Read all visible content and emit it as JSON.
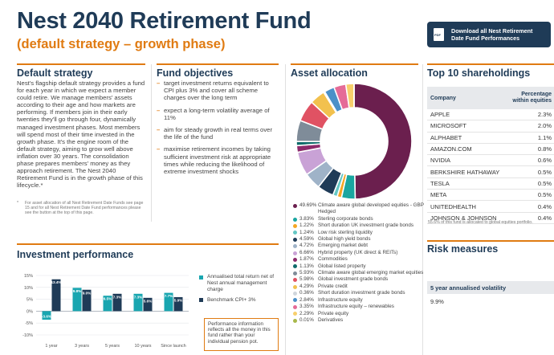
{
  "header": {
    "title": "Nest 2040 Retirement Fund",
    "subtitle": "(default strategy – growth phase)",
    "download_label": "Download all Nest Retirement Date Fund Performances",
    "download_icon_text": "PDF",
    "download_icon": "pdf-document-icon"
  },
  "colors": {
    "navy": "#1f3b57",
    "orange": "#e07b12",
    "teal": "#19a6b0"
  },
  "default_strategy": {
    "heading": "Default strategy",
    "body": "Nest's flagship default strategy provides a fund for each year in which we expect a member could retire. We manage members' assets according to their age and how markets are performing. If members join in their early twenties they'll go through four, dynamically managed investment phases. Most members will spend most of their time invested in the growth phase. It's the engine room of the default strategy, aiming to grow well above inflation over 30 years. The consolidation phase prepares members' money as they approach retirement. The Nest 2040 Retirement Fund is in the growth phase of this lifecycle.*",
    "footnote_mark": "*",
    "footnote": "For asset allocation of all Nest Retirement Date Funds see page 15 and for all Nest Retirement Date Fund performances please see the button at the top of this page."
  },
  "fund_objectives": {
    "heading": "Fund objectives",
    "items": [
      "target investment returns equivalent to CPI plus 3% and cover all scheme charges over the long term",
      "expect a long-term volatility average of 11%",
      "aim for steady growth in real terms over the life of the fund",
      "maximise retirement incomes by taking sufficient investment risk at appropriate times while reducing the likelihood of extreme investment shocks"
    ]
  },
  "asset_allocation": {
    "heading": "Asset allocation",
    "items": [
      {
        "pct": "49.69%",
        "label": "Climate aware global developed equities - GBP Hedged",
        "value": 49.69,
        "color": "#6b1f4e"
      },
      {
        "pct": "3.83%",
        "label": "Sterling corporate bonds",
        "value": 3.83,
        "color": "#1aa6a0"
      },
      {
        "pct": "1.22%",
        "label": "Short duration UK investment grade bonds",
        "value": 1.22,
        "color": "#f5a623"
      },
      {
        "pct": "1.24%",
        "label": "Low risk sterling liquidity",
        "value": 1.24,
        "color": "#64c7c4"
      },
      {
        "pct": "4.59%",
        "label": "Global high yield bonds",
        "value": 4.59,
        "color": "#1f3b57"
      },
      {
        "pct": "4.72%",
        "label": "Emerging market debt",
        "value": 4.72,
        "color": "#9fb3c8"
      },
      {
        "pct": "6.66%",
        "label": "Hybrid property (UK direct & REITs)",
        "value": 6.66,
        "color": "#c9a2d6"
      },
      {
        "pct": "1.87%",
        "label": "Commodities",
        "value": 1.87,
        "color": "#8c2a6b"
      },
      {
        "pct": "1.13%",
        "label": "Global listed property",
        "value": 1.13,
        "color": "#0f6b6b"
      },
      {
        "pct": "5.93%",
        "label": "Climate aware global emerging market equities",
        "value": 5.93,
        "color": "#7f8c99"
      },
      {
        "pct": "5.98%",
        "label": "Global investment grade bonds",
        "value": 5.98,
        "color": "#e05263"
      },
      {
        "pct": "4.29%",
        "label": "Private credit",
        "value": 4.29,
        "color": "#f2c14e"
      },
      {
        "pct": "0.36%",
        "label": "Short duration investment grade bonds",
        "value": 0.36,
        "color": "#d0d6dc"
      },
      {
        "pct": "2.84%",
        "label": "Infrastructure equity",
        "value": 2.84,
        "color": "#4a90c8"
      },
      {
        "pct": "3.35%",
        "label": "Infrastructure equity – renewables",
        "value": 3.35,
        "color": "#e56b97"
      },
      {
        "pct": "2.29%",
        "label": "Private equity",
        "value": 2.29,
        "color": "#f7cf6c"
      },
      {
        "pct": "0.01%",
        "label": "Derivatives",
        "value": 0.01,
        "color": "#a8b84a"
      }
    ]
  },
  "shareholdings": {
    "heading": "Top 10 shareholdings",
    "col_company": "Company",
    "col_pct": "Percentage within equities",
    "rows": [
      {
        "company": "APPLE",
        "pct": "2.3%"
      },
      {
        "company": "MICROSOFT",
        "pct": "2.0%"
      },
      {
        "company": "ALPHABET",
        "pct": "1.1%"
      },
      {
        "company": "AMAZON.COM",
        "pct": "0.8%"
      },
      {
        "company": "NVIDIA",
        "pct": "0.6%"
      },
      {
        "company": "BERKSHIRE HATHAWAY",
        "pct": "0.5%"
      },
      {
        "company": "TESLA",
        "pct": "0.5%"
      },
      {
        "company": "META",
        "pct": "0.5%"
      },
      {
        "company": "UNITEDHEALTH",
        "pct": "0.4%"
      },
      {
        "company": "JOHNSON & JOHNSON",
        "pct": "0.4%"
      }
    ],
    "note": "55.6% of this fund is allocated to global equities portfolio."
  },
  "risk": {
    "heading": "Risk measures",
    "label": "5 year annualised volatility",
    "value": "9.9%"
  },
  "performance": {
    "heading": "Investment performance",
    "legend_return": "Annualised total return net of Nest annual management charge",
    "legend_benchmark": "Benchmark CPI+ 3%",
    "note": "Performance information reflects all the money in this fund rather than your individual pension pot."
  },
  "chart_data": {
    "type": "bar",
    "categories": [
      "1 year",
      "3 years",
      "5 years",
      "10 years",
      "Since launch"
    ],
    "series": [
      {
        "name": "Annualised total return net of Nest annual management charge",
        "values": [
          -3.6,
          9.8,
          6.5,
          7.3,
          7.7
        ],
        "labels": [
          "-3.6%",
          "9.8%",
          "6.5%",
          "7.3%",
          "7.7%"
        ],
        "color": "#19a6b0"
      },
      {
        "name": "Benchmark CPI+ 3%",
        "values": [
          13.4,
          9.0,
          7.3,
          5.6,
          5.9
        ],
        "labels": [
          "13.4%",
          "9.0%",
          "7.3%",
          "5.6%",
          "5.9%"
        ],
        "color": "#1f3b57"
      }
    ],
    "yticks": [
      "15%",
      "10%",
      "5%",
      "0%",
      "-5%",
      "-10%"
    ],
    "ylim": [
      -10,
      15
    ],
    "grid": true
  }
}
